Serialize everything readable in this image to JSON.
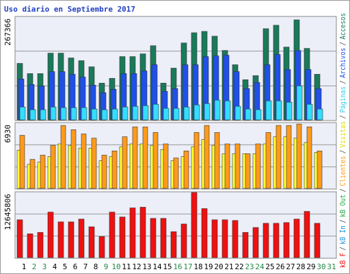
{
  "chart_data": [
    {
      "type": "bar",
      "title": "Uso diario en Septiembre 2017",
      "ylim": [
        0,
        267366
      ],
      "yticks": [
        267366
      ],
      "grid": true,
      "series": [
        {
          "name": "Accesos",
          "color": "#1a7a5a",
          "values": [
            147000,
            120400,
            120400,
            173600,
            173600,
            161200,
            154100,
            138100,
            95600,
            108000,
            164700,
            164700,
            171800,
            193000,
            95600,
            134600,
            200100,
            226700,
            230200,
            217800,
            180600,
            143500,
            104500,
            115100,
            237300,
            246200,
            189500,
            260300,
            186000,
            118700,
            null
          ]
        },
        {
          "name": "Archivos",
          "color": "#2050e8",
          "values": [
            106300,
            92100,
            88600,
            125700,
            125700,
            118700,
            111600,
            90300,
            70800,
            79700,
            120400,
            120400,
            127500,
            143500,
            74400,
            81500,
            143500,
            143500,
            164700,
            166500,
            168200,
            125700,
            81500,
            97400,
            143500,
            170000,
            131100,
            180600,
            131100,
            81500,
            null
          ]
        },
        {
          "name": "Páginas",
          "color": "#33ddff",
          "values": [
            33600,
            26600,
            26600,
            33600,
            31900,
            31900,
            31900,
            28300,
            26600,
            28300,
            33600,
            35400,
            37200,
            40700,
            30100,
            30100,
            33600,
            39000,
            42500,
            51400,
            49600,
            35400,
            28300,
            26600,
            49600,
            49600,
            46000,
            88600,
            40700,
            28300,
            null
          ]
        }
      ]
    },
    {
      "type": "bar",
      "ylim": [
        0,
        6930
      ],
      "yticks": [
        6930
      ],
      "grid": true,
      "series": [
        {
          "name": "Visitas",
          "color": "#ffff33",
          "values": [
            4070,
            2560,
            2790,
            3390,
            4740,
            4590,
            4290,
            4290,
            2940,
            3390,
            4440,
            4740,
            4740,
            4590,
            4140,
            2940,
            3390,
            4440,
            5200,
            4590,
            3690,
            3690,
            3690,
            3690,
            4740,
            5500,
            5500,
            5350,
            4890,
            3840,
            null
          ]
        },
        {
          "name": "Clientes",
          "color": "#ff9a1a",
          "values": [
            5650,
            3090,
            3540,
            4590,
            6700,
            6250,
            5800,
            5350,
            3540,
            3990,
            5500,
            6550,
            6550,
            5950,
            4740,
            3240,
            3990,
            5950,
            6700,
            5950,
            4740,
            4740,
            3690,
            4740,
            5950,
            6700,
            6700,
            6850,
            6550,
            3990,
            null
          ]
        }
      ]
    },
    {
      "type": "bar",
      "ylim": [
        0,
        12645806
      ],
      "yticks": [
        12645806
      ],
      "grid": true,
      "categories": [
        "1",
        "2",
        "3",
        "4",
        "5",
        "6",
        "7",
        "8",
        "9",
        "10",
        "11",
        "12",
        "13",
        "14",
        "15",
        "16",
        "17",
        "18",
        "19",
        "20",
        "21",
        "22",
        "23",
        "24",
        "25",
        "26",
        "27",
        "28",
        "29",
        "30",
        "31"
      ],
      "category_colors": [
        "#000000",
        "#228844",
        "#228844",
        "#000000",
        "#000000",
        "#000000",
        "#000000",
        "#000000",
        "#228844",
        "#228844",
        "#000000",
        "#000000",
        "#000000",
        "#000000",
        "#000000",
        "#228844",
        "#228844",
        "#000000",
        "#000000",
        "#000000",
        "#000000",
        "#000000",
        "#228844",
        "#228844",
        "#000000",
        "#000000",
        "#000000",
        "#000000",
        "#000000",
        "#228844",
        "#228844"
      ],
      "series": [
        {
          "name": "kB F",
          "color": "#ee1111",
          "values": [
            7343000,
            4623000,
            4895000,
            8839000,
            6935000,
            6935000,
            7479000,
            5983000,
            4079000,
            8839000,
            7887000,
            9654000,
            9790000,
            7615000,
            7615000,
            5031000,
            6527000,
            12645806,
            9518000,
            7343000,
            7343000,
            7207000,
            4895000,
            5847000,
            6663000,
            6663000,
            6799000,
            7479000,
            8975000,
            6663000,
            null
          ]
        }
      ]
    }
  ],
  "legend": {
    "separator": "/",
    "items": [
      {
        "text": "kB F",
        "color": "#ee1111"
      },
      {
        "text": "kB In",
        "color": "#2090e0"
      },
      {
        "text": "kB Out",
        "color": "#22aa44"
      },
      {
        "text": "Clientes",
        "color": "#ff9a1a"
      },
      {
        "text": "Visitas",
        "color": "#dddd00"
      },
      {
        "text": "Páginas",
        "color": "#33ccee"
      },
      {
        "text": "Archivos",
        "color": "#2050e8"
      },
      {
        "text": "Accesos",
        "color": "#1a7a5a"
      }
    ]
  }
}
